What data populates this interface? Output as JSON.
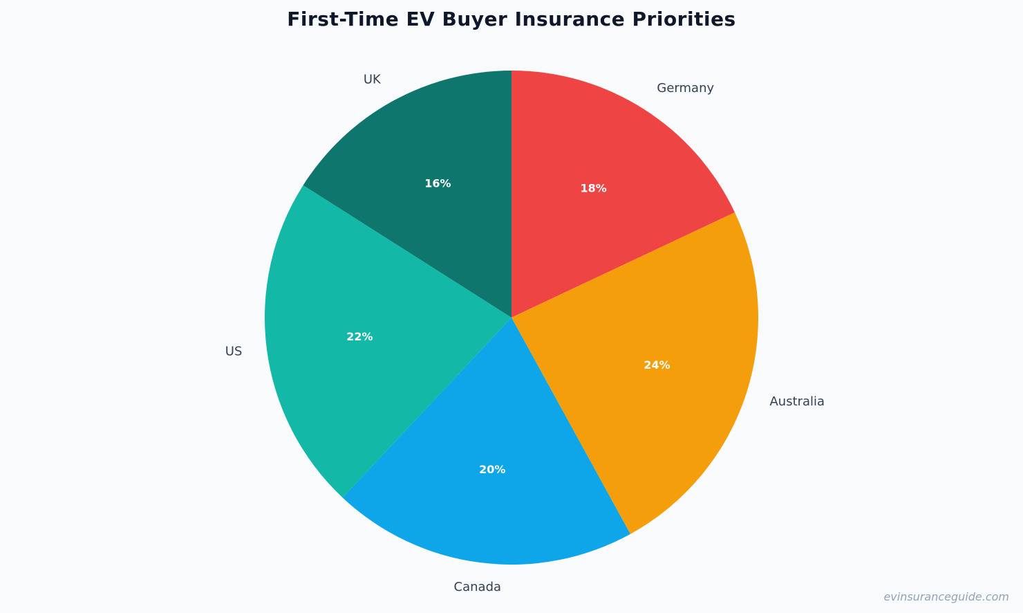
{
  "chart_data": {
    "type": "pie",
    "title": "First-Time EV Buyer Insurance Priorities",
    "start": "top",
    "direction": "clockwise",
    "slices": [
      {
        "label": "Germany",
        "value": 18,
        "pct_label": "18%",
        "color": "#ef4444"
      },
      {
        "label": "Australia",
        "value": 24,
        "pct_label": "24%",
        "color": "#f59e0b"
      },
      {
        "label": "Canada",
        "value": 20,
        "pct_label": "20%",
        "color": "#0ea5e9"
      },
      {
        "label": "US",
        "value": 22,
        "pct_label": "22%",
        "color": "#14b8a6"
      },
      {
        "label": "UK",
        "value": 16,
        "pct_label": "16%",
        "color": "#0f766e"
      }
    ]
  },
  "watermark": "evinsuranceguide.com"
}
